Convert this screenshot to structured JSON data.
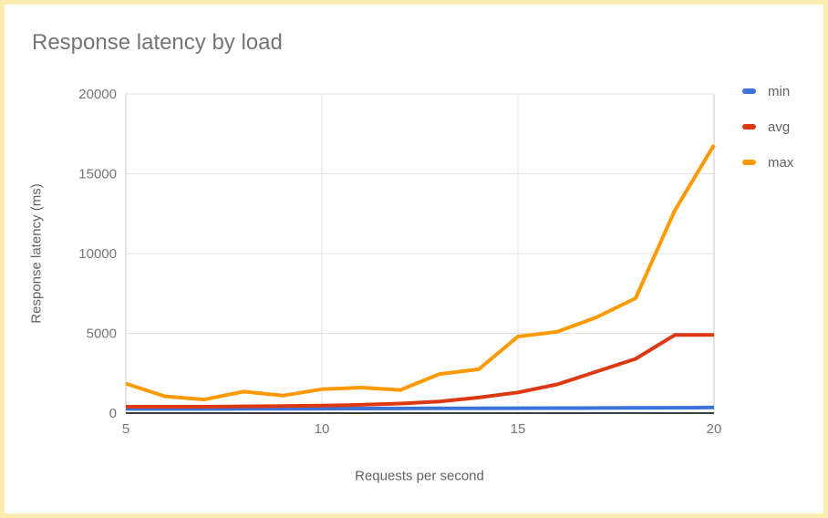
{
  "card": {
    "border_color": "#FAEDAF",
    "background": "#FFFFFF"
  },
  "chart_data": {
    "type": "line",
    "title": "Response latency by load",
    "xlabel": "Requests per second",
    "ylabel": "Response latency (ms)",
    "x": [
      5,
      6,
      7,
      8,
      9,
      10,
      11,
      12,
      13,
      14,
      15,
      16,
      17,
      18,
      19,
      20
    ],
    "series": [
      {
        "name": "min",
        "color": "#3B73D9",
        "values": [
          260,
          265,
          265,
          270,
          275,
          280,
          285,
          290,
          295,
          300,
          310,
          315,
          320,
          330,
          340,
          355
        ]
      },
      {
        "name": "avg",
        "color": "#DC3912",
        "values": [
          400,
          400,
          400,
          420,
          440,
          470,
          520,
          600,
          730,
          980,
          1300,
          1800,
          2600,
          3400,
          4900,
          4900
        ]
      },
      {
        "name": "max",
        "color": "#FF9900",
        "values": [
          1850,
          1050,
          850,
          1350,
          1100,
          1500,
          1600,
          1450,
          2450,
          2750,
          4800,
          5100,
          6000,
          7200,
          12700,
          16800
        ]
      }
    ],
    "xlim": [
      5,
      20
    ],
    "ylim": [
      0,
      20000
    ],
    "xticks": [
      5,
      10,
      15,
      20
    ],
    "yticks": [
      0,
      5000,
      10000,
      15000,
      20000
    ],
    "grid": true,
    "legend_position": "right",
    "gridline_color": "#E3E3E3",
    "edge_line_color": "#C9C9C9",
    "baseline_color": "#3D3D3D",
    "tick_label_color": "#757575"
  }
}
